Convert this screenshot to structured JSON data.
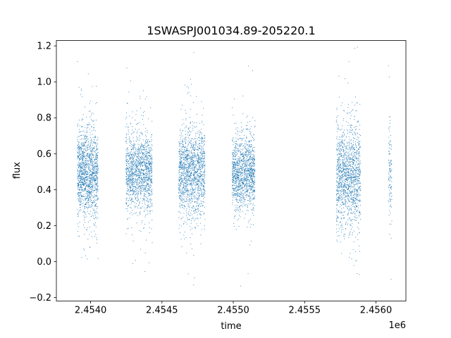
{
  "chart_data": {
    "type": "scatter",
    "title": "1SWASPJ001034.89-205220.1",
    "xlabel": "time",
    "ylabel": "flux",
    "x_offset_label": "1e6",
    "xlim": [
      2453750,
      2456200
    ],
    "ylim": [
      -0.22,
      1.23
    ],
    "x_ticks": [
      2453990,
      2454490,
      2454990,
      2455490,
      2455990
    ],
    "x_tick_labels": [
      "2.4540",
      "2.4545",
      "2.4550",
      "2.4555",
      "2.4560"
    ],
    "y_ticks": [
      -0.2,
      0.0,
      0.2,
      0.4,
      0.6,
      0.8,
      1.0,
      1.2
    ],
    "y_tick_labels": [
      "−0.2",
      "0.0",
      "0.2",
      "0.4",
      "0.6",
      "0.8",
      "1.0",
      "1.2"
    ],
    "grid": false,
    "legend": null,
    "series": [
      {
        "marker_color": "#1f77b4",
        "clusters": [
          {
            "x_start": 2453895,
            "x_end": 2454040,
            "y_center": 0.5,
            "y_spread": 0.12,
            "n": 1400
          },
          {
            "x_start": 2454235,
            "x_end": 2454420,
            "y_center": 0.5,
            "y_spread": 0.11,
            "n": 1400
          },
          {
            "x_start": 2454605,
            "x_end": 2454790,
            "y_center": 0.5,
            "y_spread": 0.12,
            "n": 1500
          },
          {
            "x_start": 2454980,
            "x_end": 2455140,
            "y_center": 0.5,
            "y_spread": 0.1,
            "n": 1300
          },
          {
            "x_start": 2455710,
            "x_end": 2455880,
            "y_center": 0.49,
            "y_spread": 0.14,
            "n": 1400
          },
          {
            "x_start": 2456075,
            "x_end": 2456100,
            "y_center": 0.48,
            "y_spread": 0.13,
            "n": 120
          }
        ]
      }
    ]
  }
}
